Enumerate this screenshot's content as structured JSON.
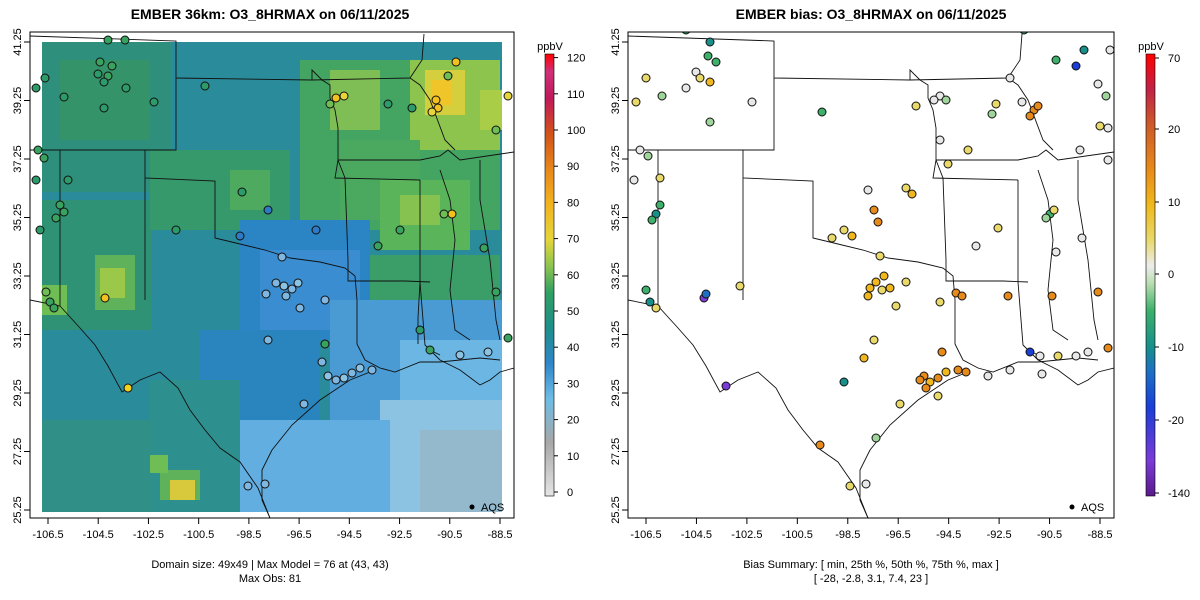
{
  "left_panel": {
    "title": "EMBER 36km: O3_8HRMAX on 06/11/2025",
    "x_ticks": [
      "-106.5",
      "-104.5",
      "-102.5",
      "-100.5",
      "-98.5",
      "-96.5",
      "-94.5",
      "-92.5",
      "-90.5",
      "-88.5"
    ],
    "y_ticks": [
      "25.25",
      "27.25",
      "29.25",
      "31.25",
      "33.25",
      "35.25",
      "37.25",
      "39.25",
      "41.25"
    ],
    "legend_label": "AQS",
    "footer_line1": "Domain size: 49x49 | Max Model = 76 at (43, 43)",
    "footer_line2": "Max Obs: 81",
    "colorbar": {
      "unit": "ppbV",
      "ticks": [
        "0",
        "10",
        "20",
        "30",
        "40",
        "50",
        "60",
        "70",
        "80",
        "90",
        "100",
        "110",
        "120"
      ]
    }
  },
  "right_panel": {
    "title": "EMBER bias: O3_8HRMAX on 06/11/2025",
    "x_ticks": [
      "-106.5",
      "-104.5",
      "-102.5",
      "-100.5",
      "-98.5",
      "-96.5",
      "-94.5",
      "-92.5",
      "-90.5",
      "-88.5"
    ],
    "y_ticks": [
      "25.25",
      "27.25",
      "29.25",
      "31.25",
      "33.25",
      "35.25",
      "37.25",
      "39.25",
      "41.25"
    ],
    "legend_label": "AQS",
    "footer_line1": "Bias Summary: [ min, 25th %, 50th %, 75th %, max ]",
    "footer_line2": "[ -28,   -2.8,   3.1,   7.4,   23 ]",
    "colorbar": {
      "unit": "ppbV",
      "ticks": [
        "70",
        "20",
        "10",
        "0",
        "-10",
        "-20",
        "-140"
      ]
    }
  },
  "colors": {
    "conc_scale": [
      "#d8d8d8",
      "#a8a8a8",
      "#6cbde6",
      "#3a8ccc",
      "#1f7ab8",
      "#1e8f8a",
      "#2fa063",
      "#6fbf55",
      "#e5d53a",
      "#f2b31e",
      "#e8861a",
      "#d2521a",
      "#c2185b",
      "#e11d1d"
    ],
    "bias_scale": [
      "#6a1b9a",
      "#7b3bd6",
      "#1a3ed6",
      "#1e6fc4",
      "#17908a",
      "#3db06b",
      "#9fd59a",
      "#e8e8e8",
      "#e8d96a",
      "#f0b81c",
      "#e68a1a",
      "#cc5a2a",
      "#c02248",
      "#e01414"
    ]
  }
}
